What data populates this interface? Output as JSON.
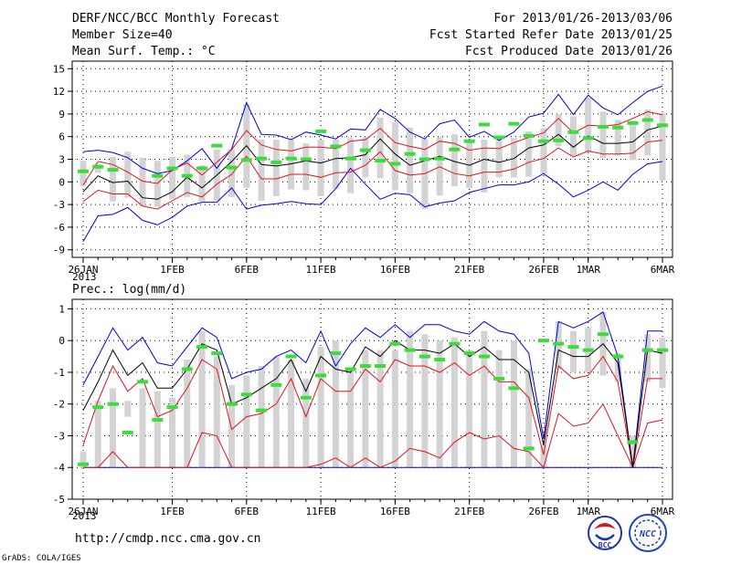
{
  "header": {
    "left_line1": "DERF/NCC/BCC Monthly Forecast",
    "left_line2": "Member Size=40",
    "left_line3": "Mean Surf. Temp.: °C",
    "right_line1": "For 2013/01/26-2013/03/06",
    "right_line2": "Fcst Started Refer Date 2013/01/25",
    "right_line3": "Fcst Produced Date 2013/01/26"
  },
  "footer": {
    "url": "http://cmdp.ncc.cma.gov.cn",
    "credit": "GrADS: COLA/IGES",
    "logo_bcc_text": "BCC",
    "logo_ncc_text": "NCC"
  },
  "colors": {
    "box": "#d3d3d3",
    "median": "#000000",
    "inner": "#e0141e",
    "outer": "#0000dd",
    "obs": "#3cdc3c",
    "grid": "#000000"
  },
  "chart_data": [
    {
      "type": "line",
      "title": "Mean Surf. Temp.: °C",
      "x_labels": [
        "26JAN",
        "1FEB",
        "6FEB",
        "11FEB",
        "16FEB",
        "21FEB",
        "26FEB",
        "1MAR",
        "6MAR"
      ],
      "x_label_days": [
        1,
        7,
        12,
        17,
        22,
        27,
        32,
        35,
        40
      ],
      "x_sublabel": "2013",
      "days": 40,
      "ylim": [
        -10,
        16
      ],
      "yticks": [
        -9,
        -6,
        -3,
        0,
        3,
        6,
        9,
        12,
        15
      ],
      "series": {
        "max": [
          4,
          4.2,
          3.9,
          3.2,
          1.8,
          1.1,
          1.5,
          2.8,
          4.4,
          1.8,
          4.4,
          10.5,
          6.3,
          6.2,
          5.6,
          6.6,
          6.2,
          5.7,
          7,
          6.9,
          9.6,
          8.4,
          6.6,
          5.7,
          7.7,
          8.2,
          5.9,
          6.7,
          5.5,
          6.6,
          8.6,
          9.1,
          11.6,
          8.9,
          11.5,
          9.8,
          8.9,
          10.5,
          12,
          12.7
        ],
        "p75": [
          -0.4,
          2.7,
          2.3,
          1.3,
          0.1,
          -0.2,
          1.6,
          2.5,
          0.9,
          2.6,
          4.3,
          6.8,
          4.9,
          4.3,
          4.1,
          4.6,
          4.6,
          4.4,
          5.4,
          5.6,
          7.1,
          5.2,
          4.7,
          4.3,
          5.4,
          5.1,
          4.2,
          4.5,
          4.4,
          5.2,
          5.9,
          6.5,
          8.4,
          6.5,
          7.5,
          7.4,
          7.6,
          8.4,
          9.3,
          8.9
        ],
        "median": [
          -1.3,
          0.8,
          -0.1,
          0.1,
          -2.1,
          -2.3,
          -1.3,
          0.6,
          -0.8,
          0.9,
          2.7,
          4.8,
          2.3,
          2.1,
          2.4,
          2.8,
          2.5,
          3.1,
          3.2,
          3.6,
          5.7,
          3.7,
          2.2,
          2.8,
          3.4,
          2.7,
          2.2,
          3,
          2.6,
          3.1,
          4.5,
          4.9,
          6.3,
          4.6,
          6.1,
          5.1,
          5.1,
          5.3,
          6.9,
          7.4
        ],
        "p25": [
          -2.6,
          -1.1,
          -1.6,
          -1.6,
          -3.2,
          -3.6,
          -2.5,
          -1.4,
          -2,
          -0.3,
          1,
          3.4,
          0.4,
          0.4,
          1,
          1,
          0.6,
          1.2,
          1.3,
          2.2,
          4,
          1.5,
          0.9,
          1.1,
          2,
          1.1,
          0.8,
          1.3,
          1.3,
          1.7,
          2.6,
          3.1,
          4.5,
          3.3,
          4.1,
          3.7,
          3.7,
          3.8,
          5.3,
          5.5
        ],
        "min": [
          -7.9,
          -4.5,
          -4.3,
          -3.4,
          -5.1,
          -5.7,
          -4.7,
          -3.2,
          -2.7,
          -2.7,
          -0.8,
          -3.6,
          -3.1,
          -2.9,
          -2.6,
          -2.9,
          -3,
          -0.9,
          1.8,
          -0.3,
          -2.3,
          -1.5,
          -1.7,
          -3.3,
          -2.8,
          -2.5,
          -1.4,
          -0.9,
          -0.4,
          -0.4,
          0,
          1.1,
          -0.3,
          -2,
          -1.1,
          0,
          -1.1,
          1,
          2.4,
          2.7
        ],
        "box_high": [
          2.8,
          2.4,
          3.3,
          4,
          3.2,
          2.8,
          3.3,
          3.6,
          2.2,
          4.3,
          4.3,
          10.3,
          5.6,
          5.6,
          5.6,
          5.1,
          5.6,
          5.6,
          5.8,
          5.9,
          8.5,
          7.9,
          7.2,
          5.7,
          5.9,
          6.3,
          5.6,
          5.6,
          5.6,
          5.8,
          6.7,
          7.1,
          9,
          8.7,
          11.1,
          9.3,
          8.2,
          8.1,
          9.6,
          9.1
        ],
        "box_low": [
          -0.6,
          1.2,
          -2.6,
          -2.1,
          -3.2,
          -3.3,
          -2.3,
          -2,
          -2.6,
          -2.5,
          -2,
          -0.8,
          -2.5,
          -1.9,
          -1,
          -1.1,
          -1.9,
          -0.9,
          -1.5,
          0.6,
          0.5,
          -1.1,
          -1.5,
          -3.6,
          -1.8,
          -0.6,
          -0.8,
          -1.4,
          0.6,
          0.6,
          0.7,
          1.1,
          4.7,
          3.4,
          3.9,
          3.2,
          3.5,
          2.9,
          3.5,
          0.2
        ],
        "obs": [
          1.4,
          2,
          1.6,
          null,
          null,
          0.8,
          1.8,
          0.8,
          1.8,
          4.8,
          1.9,
          2.9,
          3.1,
          2.6,
          3.1,
          3,
          6.7,
          4.7,
          3.1,
          4.2,
          2.8,
          2.4,
          3.7,
          3,
          3.1,
          4.3,
          5.4,
          7.6,
          5.9,
          7.7,
          6.1,
          5.4,
          5.5,
          6.6,
          5.8,
          7.3,
          7.2,
          7.8,
          8.2,
          7.5
        ]
      }
    },
    {
      "type": "line",
      "title": "Prec.: log(mm/d)",
      "x_labels": [
        "26JAN",
        "1FEB",
        "6FEB",
        "11FEB",
        "16FEB",
        "21FEB",
        "26FEB",
        "1MAR",
        "6MAR"
      ],
      "x_label_days": [
        1,
        7,
        12,
        17,
        22,
        27,
        32,
        35,
        40
      ],
      "x_sublabel": "2013",
      "days": 40,
      "ylim": [
        -5,
        1.3
      ],
      "yticks": [
        -5,
        -4,
        -3,
        -2,
        -1,
        0,
        1
      ],
      "series": {
        "max": [
          -1.4,
          -0.5,
          0.4,
          -0.3,
          0.1,
          -0.7,
          -0.8,
          -0.2,
          0.4,
          0.1,
          -1.2,
          -1,
          -0.9,
          -0.5,
          -0.3,
          -0.7,
          0.3,
          -0.8,
          -0.1,
          0.4,
          0.1,
          0.5,
          0.1,
          0.5,
          0.5,
          0.3,
          0.2,
          0.6,
          0.3,
          0.2,
          -0.4,
          -3.1,
          0.6,
          0.4,
          0.6,
          0.9,
          -0.5,
          -4,
          0.3,
          0.3
        ],
        "median": [
          -2.2,
          -1.3,
          -0.3,
          -1.1,
          -0.7,
          -1.5,
          -1.5,
          -0.9,
          -0.1,
          -0.3,
          -2,
          -1.8,
          -1.5,
          -1.2,
          -0.6,
          -1.6,
          -0.5,
          -0.9,
          -1,
          -0.2,
          -0.5,
          0,
          -0.3,
          -0.3,
          -0.4,
          -0.1,
          -0.5,
          -0.2,
          -0.6,
          -0.6,
          -1,
          -3.3,
          -0.3,
          -0.5,
          -0.5,
          -0.1,
          -0.7,
          -4,
          -0.3,
          -0.4
        ],
        "p25": [
          -3.3,
          -1.9,
          -0.8,
          -1.6,
          -1.2,
          -2.4,
          -2.2,
          -1.5,
          -0.6,
          -0.9,
          -2.8,
          -2.4,
          -2.3,
          -2,
          -1.2,
          -2.4,
          -1.2,
          -1.6,
          -1.6,
          -0.9,
          -1.3,
          -0.6,
          -0.8,
          -0.8,
          -1,
          -0.7,
          -1.1,
          -0.8,
          -1.3,
          -1.3,
          -1.8,
          -3.6,
          -0.8,
          -1.2,
          -1.1,
          -0.5,
          -1.3,
          -4,
          -1.2,
          -1.2
        ],
        "p10": [
          -4,
          -4,
          -3.5,
          -4,
          -4,
          -4,
          -4,
          -4,
          -2.9,
          -3,
          -4,
          -4,
          -4,
          -4,
          -4,
          -4,
          -3.9,
          -3.7,
          -4,
          -3.7,
          -4,
          -3.8,
          -3.4,
          -3.5,
          -3.7,
          -3.2,
          -2.9,
          -3.1,
          -3,
          -3.4,
          -3.5,
          -4,
          -2.3,
          -2.7,
          -2.6,
          -2,
          -3,
          -4,
          -2.6,
          -2.5
        ],
        "min": [
          -4,
          -4,
          -4,
          -4,
          -4,
          -4,
          -4,
          -4,
          -4,
          -4,
          -4,
          -4,
          -4,
          -4,
          -4,
          -4,
          -4,
          -4,
          -4,
          -4,
          -4,
          -4,
          -4,
          -4,
          -4,
          -4,
          -4,
          -4,
          -4,
          -4,
          -4,
          -4,
          -4,
          -4,
          -4,
          -4,
          -4,
          -4,
          -4,
          -4
        ],
        "box_high": [
          -3.5,
          -1.9,
          -1.5,
          -1.9,
          -1.5,
          -1.6,
          -1.8,
          -0.6,
          0.3,
          -0.5,
          -1.4,
          -1.1,
          -0.8,
          -0.5,
          -0.6,
          -1.2,
          -0.2,
          0,
          -0.9,
          -0.3,
          -0.3,
          -0.3,
          0.3,
          0.2,
          0,
          0.1,
          -0.3,
          0.3,
          -0.3,
          0,
          -0.9,
          -3.3,
          0.6,
          0.3,
          0.4,
          0.9,
          -0.4,
          -3,
          0.2,
          0.1
        ],
        "box_low": [
          -4,
          -4,
          -4,
          -2.4,
          -4,
          -4,
          -4,
          -4,
          -4,
          -4,
          -4,
          -4,
          -4,
          -4,
          -4,
          -4,
          -4,
          -4,
          -4,
          -4,
          -4,
          -4,
          -4,
          -4,
          -4,
          -4,
          -4,
          -4,
          -4,
          -4,
          -4,
          -4,
          -0.9,
          -1,
          -1,
          -1.1,
          -1.3,
          -4,
          -1.3,
          -1.5
        ],
        "obs": [
          -3.9,
          -2.1,
          -2,
          -2.9,
          -1.3,
          -2.5,
          -2.1,
          -0.9,
          -0.2,
          -0.4,
          -2,
          -1.7,
          -2.2,
          -1.4,
          -0.5,
          -1.8,
          -1.1,
          -0.4,
          -0.9,
          -0.8,
          -0.8,
          -0.1,
          -0.3,
          -0.5,
          -0.6,
          -0.1,
          -0.4,
          -0.5,
          -1.2,
          -1.5,
          -3.4,
          0,
          -0.1,
          -0.2,
          -0.3,
          0.2,
          -0.5,
          -3.2,
          -0.3,
          -0.3
        ]
      }
    }
  ]
}
